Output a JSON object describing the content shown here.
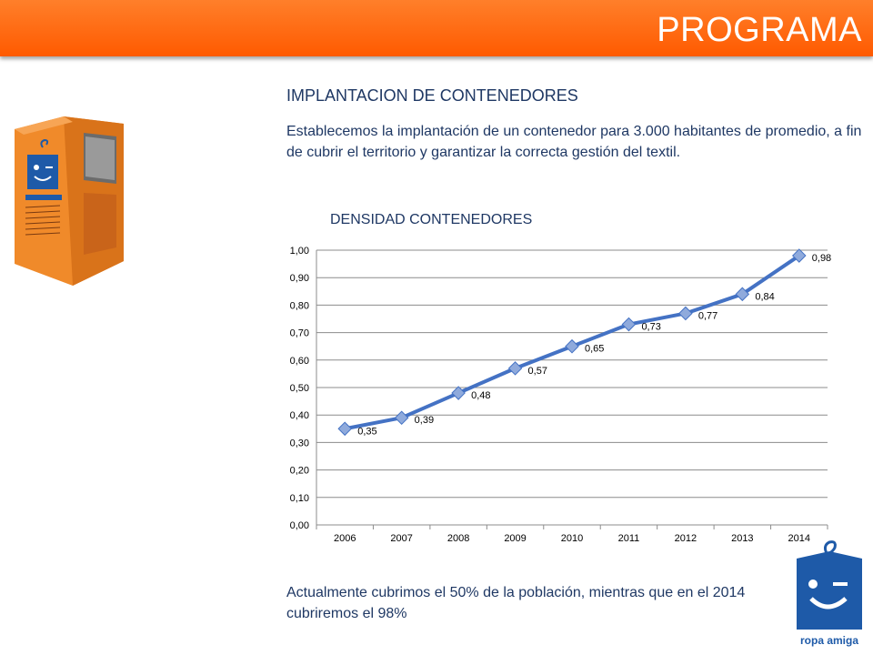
{
  "header": {
    "title": "PROGRAMA"
  },
  "section": {
    "title": "IMPLANTACION DE CONTENEDORES",
    "intro": "Establecemos la implantación de un contenedor para 3.000 habitantes de promedio, a fin de cubrir el territorio y garantizar la correcta gestión del textil."
  },
  "footer": {
    "text": "Actualmente cubrimos el 50% de la población, mientras que en el 2014 cubriremos el 98%"
  },
  "brand": {
    "name": "ropa amiga",
    "color": "#1e5aa8",
    "accent": "#ff6a00"
  },
  "colors": {
    "header": "#ff6a00",
    "text": "#1f3864",
    "line": "#4472c4",
    "marker": "#8faadc"
  },
  "chart_data": {
    "type": "line",
    "title": "DENSIDAD CONTENEDORES",
    "categories": [
      "2006",
      "2007",
      "2008",
      "2009",
      "2010",
      "2011",
      "2012",
      "2013",
      "2014"
    ],
    "values": [
      0.35,
      0.39,
      0.48,
      0.57,
      0.65,
      0.73,
      0.77,
      0.84,
      0.98
    ],
    "value_labels": [
      "0,35",
      "0,39",
      "0,48",
      "0,57",
      "0,65",
      "0,73",
      "0,77",
      "0,84",
      "0,98"
    ],
    "y_ticks": [
      "0,00",
      "0,10",
      "0,20",
      "0,30",
      "0,40",
      "0,50",
      "0,60",
      "0,70",
      "0,80",
      "0,90",
      "1,00"
    ],
    "ylim": [
      0,
      1
    ],
    "grid": true,
    "legend": "none"
  }
}
